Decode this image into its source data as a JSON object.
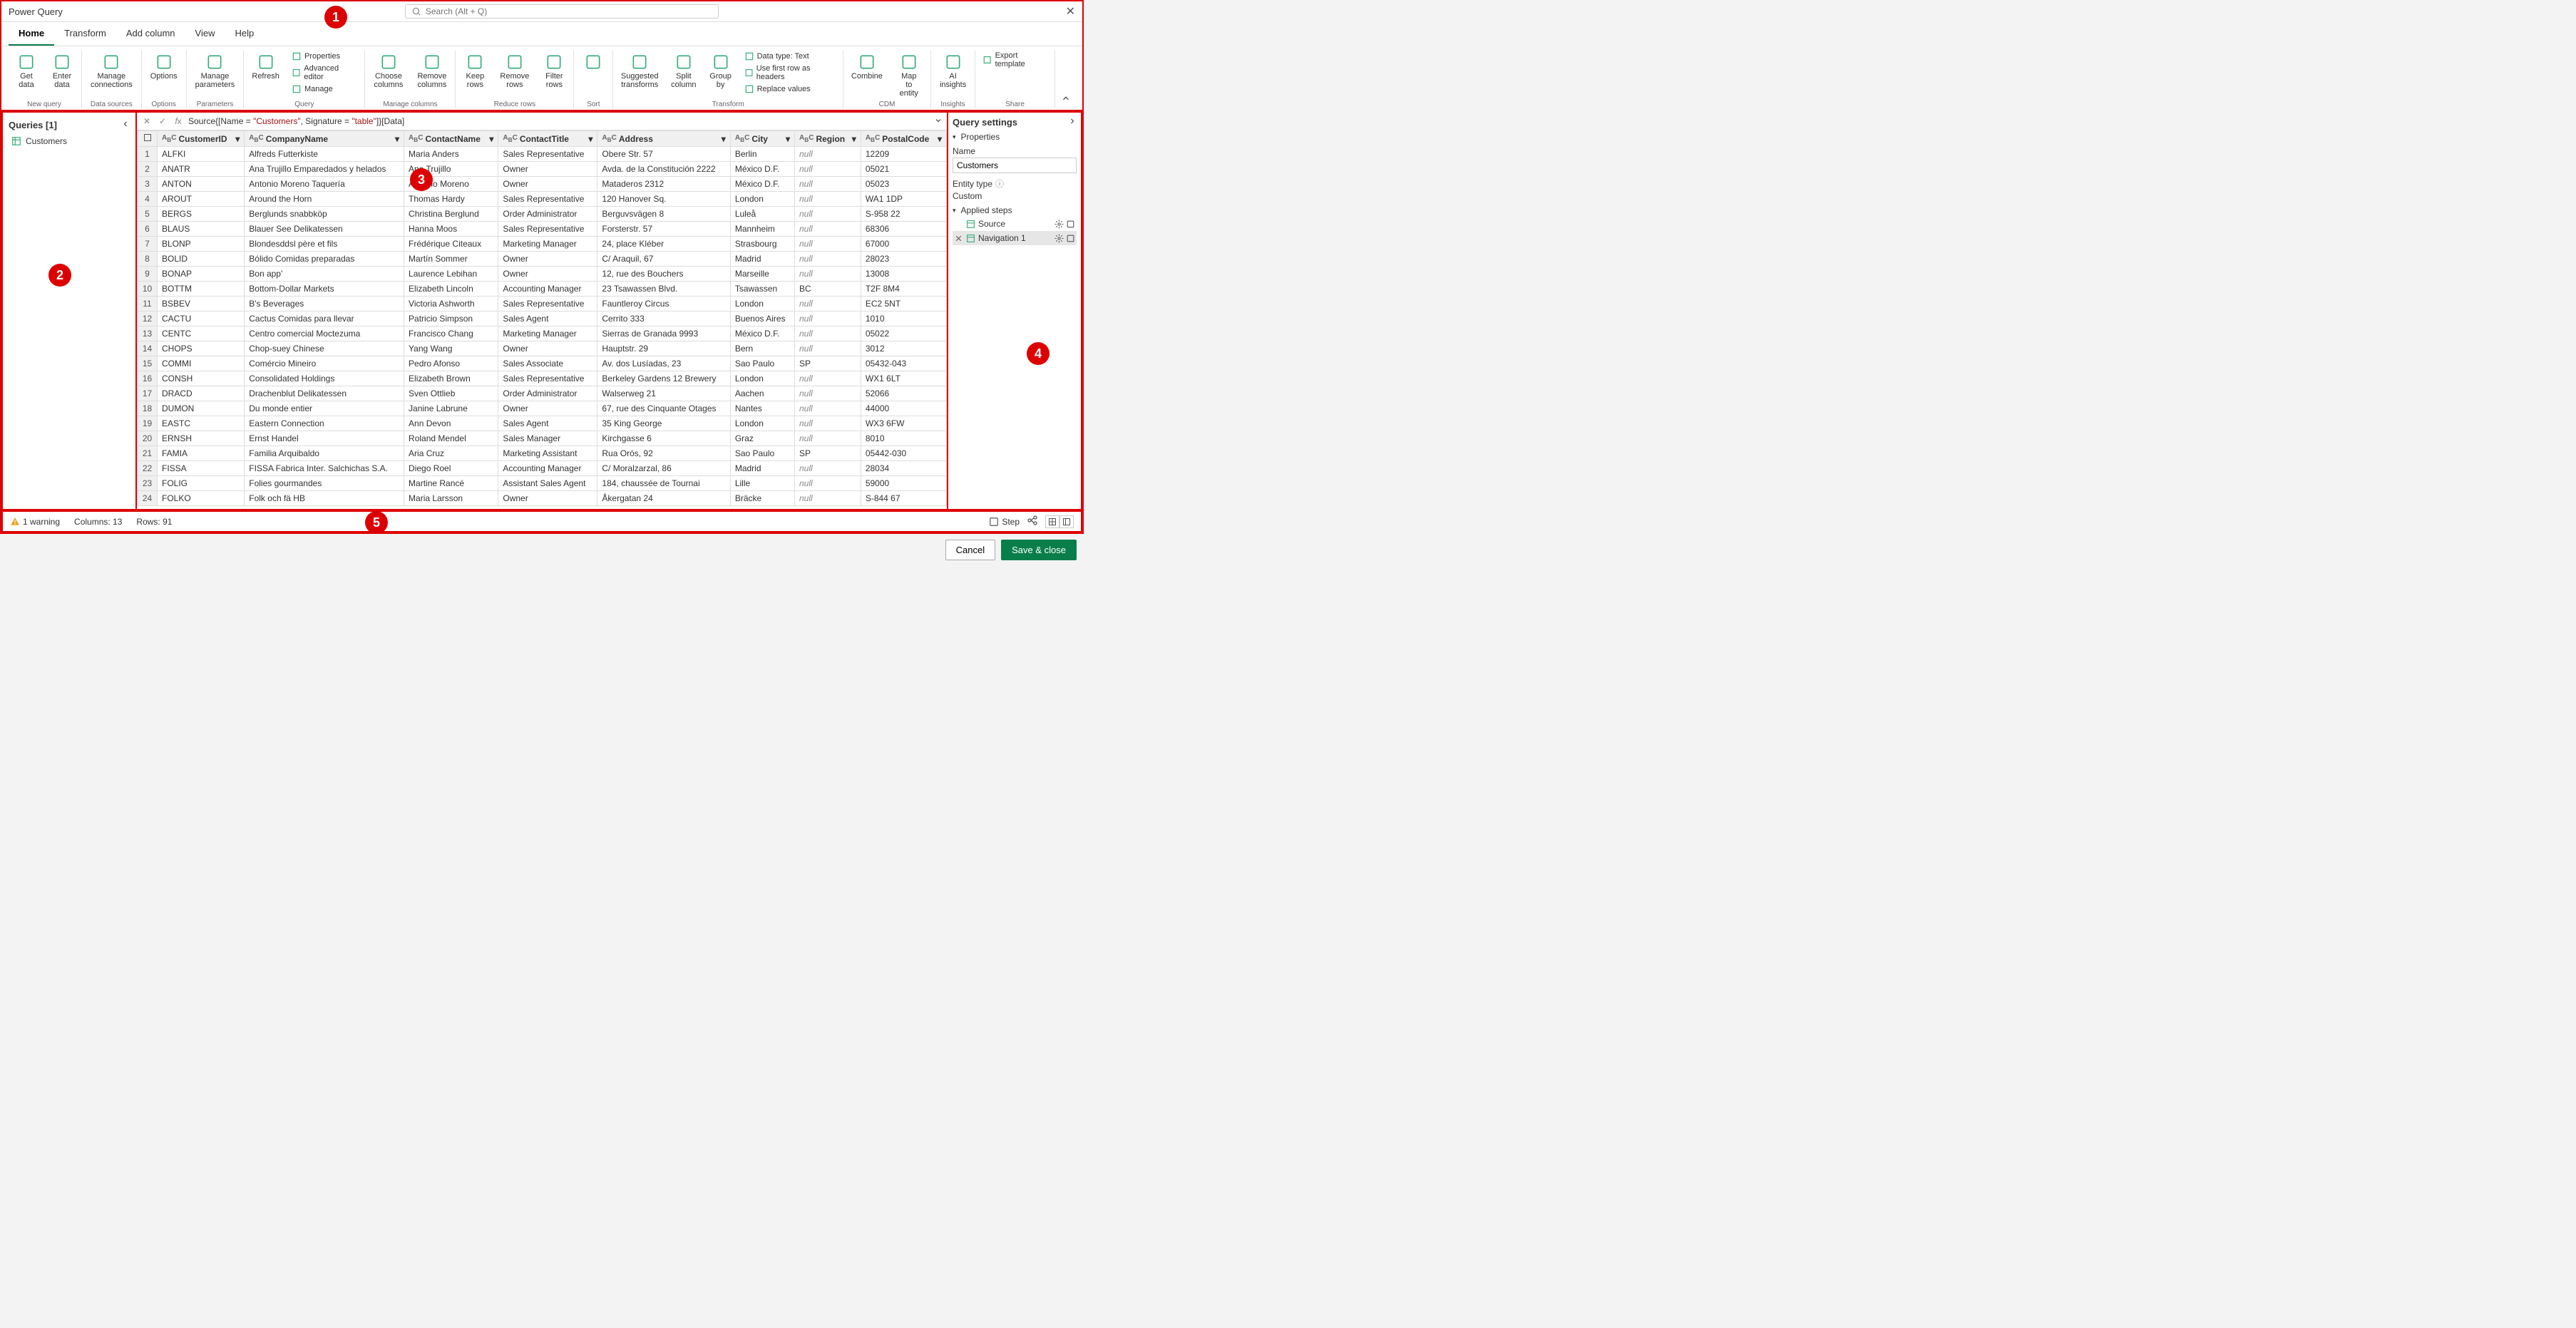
{
  "title": "Power Query",
  "search_placeholder": "Search (Alt + Q)",
  "tabs": [
    "Home",
    "Transform",
    "Add column",
    "View",
    "Help"
  ],
  "active_tab": "Home",
  "ribbon_groups": [
    {
      "label": "New query",
      "items": [
        {
          "label": "Get data"
        },
        {
          "label": "Enter data"
        }
      ]
    },
    {
      "label": "Data sources",
      "items": [
        {
          "label": "Manage connections"
        }
      ]
    },
    {
      "label": "Options",
      "items": [
        {
          "label": "Options"
        }
      ]
    },
    {
      "label": "Parameters",
      "items": [
        {
          "label": "Manage parameters"
        }
      ]
    },
    {
      "label": "Query",
      "items": [
        {
          "label": "Refresh"
        }
      ],
      "inline": [
        "Properties",
        "Advanced editor",
        "Manage"
      ]
    },
    {
      "label": "Manage columns",
      "items": [
        {
          "label": "Choose columns"
        },
        {
          "label": "Remove columns"
        }
      ]
    },
    {
      "label": "Reduce rows",
      "items": [
        {
          "label": "Keep rows"
        },
        {
          "label": "Remove rows"
        },
        {
          "label": "Filter rows"
        }
      ]
    },
    {
      "label": "Sort",
      "items": [
        {
          "label": ""
        }
      ]
    },
    {
      "label": "Transform",
      "items": [
        {
          "label": "Suggested transforms"
        },
        {
          "label": "Split column"
        },
        {
          "label": "Group by"
        }
      ],
      "inline": [
        "Data type: Text",
        "Use first row as headers",
        "Replace values"
      ]
    },
    {
      "label": "CDM",
      "items": [
        {
          "label": "Combine"
        },
        {
          "label": "Map to entity"
        }
      ]
    },
    {
      "label": "Insights",
      "items": [
        {
          "label": "AI insights"
        }
      ]
    },
    {
      "label": "Share",
      "items": [],
      "inline": [
        "Export template"
      ]
    }
  ],
  "queries_header": "Queries [1]",
  "queries": [
    "Customers"
  ],
  "formula_pre": "Source{[Name = ",
  "formula_str1": "\"Customers\"",
  "formula_mid": ", Signature = ",
  "formula_str2": "\"table\"",
  "formula_post": "]}[Data]",
  "columns": [
    "CustomerID",
    "CompanyName",
    "ContactName",
    "ContactTitle",
    "Address",
    "City",
    "Region",
    "PostalCode"
  ],
  "rows": [
    [
      "ALFKI",
      "Alfreds Futterkiste",
      "Maria Anders",
      "Sales Representative",
      "Obere Str. 57",
      "Berlin",
      null,
      "12209"
    ],
    [
      "ANATR",
      "Ana Trujillo Emparedados y helados",
      "Ana Trujillo",
      "Owner",
      "Avda. de la Constitución 2222",
      "México D.F.",
      null,
      "05021"
    ],
    [
      "ANTON",
      "Antonio Moreno Taquería",
      "Antonio Moreno",
      "Owner",
      "Mataderos  2312",
      "México D.F.",
      null,
      "05023"
    ],
    [
      "AROUT",
      "Around the Horn",
      "Thomas Hardy",
      "Sales Representative",
      "120 Hanover Sq.",
      "London",
      null,
      "WA1 1DP"
    ],
    [
      "BERGS",
      "Berglunds snabbköp",
      "Christina Berglund",
      "Order Administrator",
      "Berguvsvägen  8",
      "Luleå",
      null,
      "S-958 22"
    ],
    [
      "BLAUS",
      "Blauer See Delikatessen",
      "Hanna Moos",
      "Sales Representative",
      "Forsterstr. 57",
      "Mannheim",
      null,
      "68306"
    ],
    [
      "BLONP",
      "Blondesddsl père et fils",
      "Frédérique Citeaux",
      "Marketing Manager",
      "24, place Kléber",
      "Strasbourg",
      null,
      "67000"
    ],
    [
      "BOLID",
      "Bólido Comidas preparadas",
      "Martín Sommer",
      "Owner",
      "C/ Araquil, 67",
      "Madrid",
      null,
      "28023"
    ],
    [
      "BONAP",
      "Bon app'",
      "Laurence Lebihan",
      "Owner",
      "12, rue des Bouchers",
      "Marseille",
      null,
      "13008"
    ],
    [
      "BOTTM",
      "Bottom-Dollar Markets",
      "Elizabeth Lincoln",
      "Accounting Manager",
      "23 Tsawassen Blvd.",
      "Tsawassen",
      "BC",
      "T2F 8M4"
    ],
    [
      "BSBEV",
      "B's Beverages",
      "Victoria Ashworth",
      "Sales Representative",
      "Fauntleroy Circus",
      "London",
      null,
      "EC2 5NT"
    ],
    [
      "CACTU",
      "Cactus Comidas para llevar",
      "Patricio Simpson",
      "Sales Agent",
      "Cerrito 333",
      "Buenos Aires",
      null,
      "1010"
    ],
    [
      "CENTC",
      "Centro comercial Moctezuma",
      "Francisco Chang",
      "Marketing Manager",
      "Sierras de Granada 9993",
      "México D.F.",
      null,
      "05022"
    ],
    [
      "CHOPS",
      "Chop-suey Chinese",
      "Yang Wang",
      "Owner",
      "Hauptstr. 29",
      "Bern",
      null,
      "3012"
    ],
    [
      "COMMI",
      "Comércio Mineiro",
      "Pedro Afonso",
      "Sales Associate",
      "Av. dos Lusíadas, 23",
      "Sao Paulo",
      "SP",
      "05432-043"
    ],
    [
      "CONSH",
      "Consolidated Holdings",
      "Elizabeth Brown",
      "Sales Representative",
      "Berkeley Gardens 12  Brewery",
      "London",
      null,
      "WX1 6LT"
    ],
    [
      "DRACD",
      "Drachenblut Delikatessen",
      "Sven Ottlieb",
      "Order Administrator",
      "Walserweg 21",
      "Aachen",
      null,
      "52066"
    ],
    [
      "DUMON",
      "Du monde entier",
      "Janine Labrune",
      "Owner",
      "67, rue des Cinquante Otages",
      "Nantes",
      null,
      "44000"
    ],
    [
      "EASTC",
      "Eastern Connection",
      "Ann Devon",
      "Sales Agent",
      "35 King George",
      "London",
      null,
      "WX3 6FW"
    ],
    [
      "ERNSH",
      "Ernst Handel",
      "Roland Mendel",
      "Sales Manager",
      "Kirchgasse 6",
      "Graz",
      null,
      "8010"
    ],
    [
      "FAMIA",
      "Familia Arquibaldo",
      "Aria Cruz",
      "Marketing Assistant",
      "Rua Orós, 92",
      "Sao Paulo",
      "SP",
      "05442-030"
    ],
    [
      "FISSA",
      "FISSA Fabrica Inter. Salchichas S.A.",
      "Diego Roel",
      "Accounting Manager",
      "C/ Moralzarzal, 86",
      "Madrid",
      null,
      "28034"
    ],
    [
      "FOLIG",
      "Folies gourmandes",
      "Martine Rancé",
      "Assistant Sales Agent",
      "184, chaussée de Tournai",
      "Lille",
      null,
      "59000"
    ],
    [
      "FOLKO",
      "Folk och fä HB",
      "Maria Larsson",
      "Owner",
      "Åkergatan 24",
      "Bräcke",
      null,
      "S-844 67"
    ]
  ],
  "settings_header": "Query settings",
  "properties_label": "Properties",
  "name_label": "Name",
  "name_value": "Customers",
  "entity_type_label": "Entity type",
  "entity_type_value": "Custom",
  "applied_steps_label": "Applied steps",
  "steps": [
    "Source",
    "Navigation 1"
  ],
  "status_warning": "1 warning",
  "status_columns": "Columns: 13",
  "status_rows": "Rows: 91",
  "status_step": "Step",
  "cancel_label": "Cancel",
  "save_label": "Save & close",
  "null_text": "null",
  "callouts": [
    "1",
    "2",
    "3",
    "4",
    "5"
  ],
  "info_glyph": "ⓘ"
}
